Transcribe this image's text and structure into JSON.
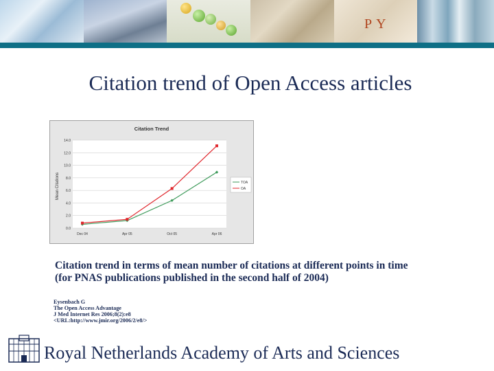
{
  "slide": {
    "title": "Citation trend of Open Access articles",
    "caption_line1": "Citation trend in terms of mean number of citations at different points in time",
    "caption_line2": "(for PNAS publications published in the second half of 2004)",
    "reference": [
      "Eysenbach G",
      "The Open Access Advantage",
      "J Med Internet Res 2006;8(2):e8",
      "<URL:http://www.jmir.org/2006/2/e8/>"
    ],
    "footer": "Royal Netherlands Academy of Arts and Sciences"
  },
  "colors": {
    "title": "#1a2a55",
    "band": "#0e6f86",
    "series_toa": "#3d9a5a",
    "series_oa": "#e0252b"
  },
  "chart_data": {
    "type": "line",
    "title": "Citation Trend",
    "xlabel": "",
    "ylabel": "Mean Citations",
    "categories": [
      "Dec 04",
      "Apr 05",
      "Oct 05",
      "Apr 06"
    ],
    "yticks": [
      "0.0",
      "2.0",
      "4.0",
      "6.0",
      "8.0",
      "10.0",
      "12.0",
      "14.0"
    ],
    "ylim": [
      0,
      14
    ],
    "legend_position": "right",
    "series": [
      {
        "name": "TOA",
        "values": [
          0.6,
          1.2,
          4.4,
          8.9
        ]
      },
      {
        "name": "OA",
        "values": [
          0.8,
          1.4,
          6.3,
          13.1
        ]
      }
    ]
  }
}
